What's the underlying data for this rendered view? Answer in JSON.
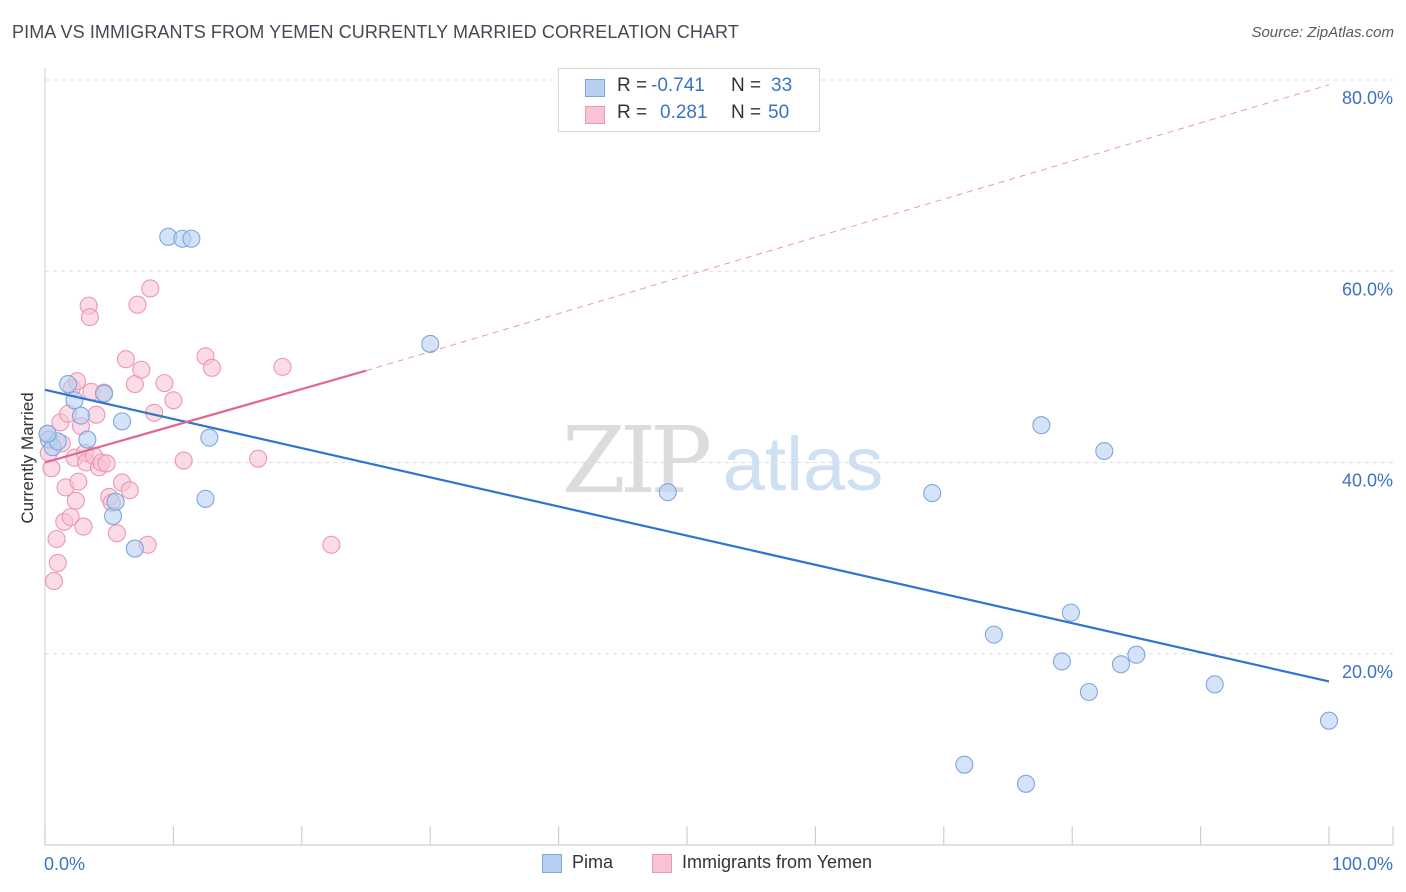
{
  "title": "PIMA VS IMMIGRANTS FROM YEMEN CURRENTLY MARRIED CORRELATION CHART",
  "source": "Source: ZipAtlas.com",
  "watermark": {
    "zip": "ZIP",
    "atlas": "atlas"
  },
  "stats": {
    "series1": {
      "r_label": "R =",
      "r_value": "-0.741",
      "n_label": "N =",
      "n_value": "33"
    },
    "series2": {
      "r_label": "R =",
      "r_value": "0.281",
      "n_label": "N =",
      "n_value": "50"
    }
  },
  "legend": {
    "pima": "Pima",
    "yemen": "Immigrants from Yemen"
  },
  "colors": {
    "pima_fill": "#b7d0f1",
    "pima_stroke": "#7ea7de",
    "pima_line": "#2f74d0",
    "yemen_fill": "#f8c3d3",
    "yemen_stroke": "#ec97b2",
    "yemen_line": "#e2678f",
    "grid": "#dddddd",
    "tick_text": "#3b73c4"
  },
  "chart_data": {
    "type": "scatter",
    "title": "PIMA VS IMMIGRANTS FROM YEMEN CURRENTLY MARRIED CORRELATION CHART",
    "xlabel": "",
    "ylabel": "Currently Married",
    "xlim": [
      0,
      100
    ],
    "ylim": [
      0,
      80
    ],
    "x_tick_labels": [
      "0.0%",
      "100.0%"
    ],
    "y_ticks": [
      20,
      40,
      60,
      80
    ],
    "y_tick_labels": [
      "20.0%",
      "40.0%",
      "60.0%",
      "80.0%"
    ],
    "grid": true,
    "series": [
      {
        "name": "Pima",
        "x": [
          0.3,
          0.6,
          1.0,
          1.8,
          2.3,
          2.8,
          3.3,
          4.6,
          5.3,
          5.5,
          6.0,
          7.0,
          9.6,
          10.7,
          11.4,
          12.5,
          12.8,
          30.0,
          48.5,
          69.1,
          71.6,
          73.9,
          76.4,
          77.6,
          79.9,
          79.2,
          81.3,
          82.5,
          83.8,
          85.0,
          91.1,
          100.0,
          0.2
        ],
        "y": [
          42.4,
          41.6,
          42.2,
          48.2,
          46.5,
          44.9,
          42.4,
          47.2,
          34.4,
          35.9,
          44.3,
          31.0,
          63.6,
          63.4,
          63.4,
          36.2,
          42.6,
          52.4,
          36.9,
          36.8,
          8.4,
          22.0,
          6.4,
          43.9,
          24.3,
          19.2,
          16.0,
          41.2,
          18.9,
          19.9,
          16.8,
          13.0,
          43.0
        ]
      },
      {
        "name": "Immigrants from Yemen",
        "x": [
          0.2,
          0.3,
          0.5,
          0.7,
          0.9,
          1.0,
          1.2,
          1.3,
          1.5,
          1.6,
          1.8,
          2.0,
          2.1,
          2.3,
          2.4,
          2.5,
          2.6,
          2.8,
          3.0,
          3.1,
          3.2,
          3.4,
          3.5,
          3.6,
          3.8,
          4.0,
          4.2,
          4.4,
          4.6,
          4.8,
          5.0,
          5.2,
          5.6,
          6.0,
          6.3,
          6.6,
          7.0,
          7.2,
          7.5,
          8.0,
          8.2,
          8.5,
          9.3,
          10.0,
          10.8,
          12.5,
          13.0,
          16.6,
          18.5,
          22.3
        ],
        "y": [
          43.0,
          41.0,
          39.4,
          27.6,
          32.0,
          29.5,
          44.2,
          42.0,
          33.8,
          37.4,
          45.1,
          34.3,
          47.8,
          40.5,
          36.0,
          48.5,
          38.0,
          43.8,
          33.3,
          41.0,
          40.0,
          56.4,
          55.2,
          47.4,
          40.7,
          45.0,
          39.5,
          40.0,
          47.3,
          39.9,
          36.4,
          35.8,
          32.6,
          37.9,
          50.8,
          37.1,
          48.2,
          56.5,
          49.7,
          31.4,
          58.2,
          45.2,
          48.3,
          46.5,
          40.2,
          51.1,
          49.9,
          40.4,
          50.0,
          31.4
        ]
      }
    ],
    "trend_lines": [
      {
        "name": "Pima",
        "x": [
          0,
          100
        ],
        "y": [
          47.6,
          17.1
        ],
        "style": "solid"
      },
      {
        "name": "Immigrants from Yemen",
        "solid": {
          "x": [
            0,
            25
          ],
          "y": [
            40.0,
            49.6
          ]
        },
        "dashed": {
          "x": [
            25,
            100
          ],
          "y": [
            49.6,
            79.5
          ]
        }
      }
    ]
  }
}
